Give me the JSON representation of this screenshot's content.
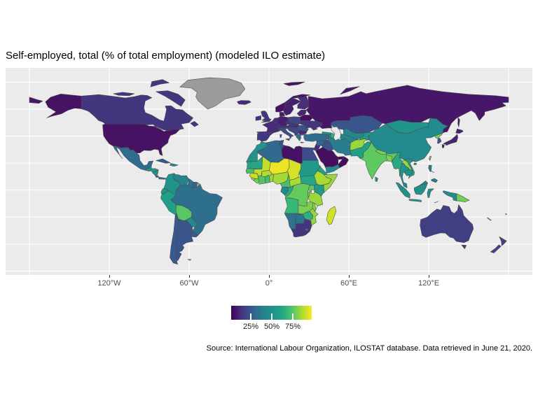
{
  "title": "Self-employed, total (% of total employment) (modeled ILO estimate)",
  "x_axis": {
    "tick_labels": [
      "120°W",
      "60°W",
      "0°",
      "60°E",
      "120°E"
    ]
  },
  "legend": {
    "tick_labels": [
      "25%",
      "50%",
      "75%"
    ],
    "tick_values": [
      25,
      50,
      75
    ]
  },
  "caption": "Source: International Labour Organization, ILOSTAT database. Data retrieved in June 21, 2020.",
  "colors": {
    "panel_bg": "#ebebeb",
    "gridline": "#ffffff",
    "na_color": "#9b9b9b",
    "border": "#4a4a4a",
    "axis_text": "#4d4d4d"
  },
  "chart_data": {
    "type": "choropleth",
    "projection": "equirectangular",
    "title": "Self-employed, total (% of total employment) (modeled ILO estimate)",
    "value_label": "Self-employed (% of total employment)",
    "scale": {
      "palette": "viridis",
      "domain": [
        1.7,
        97.5
      ],
      "stops": [
        "#440154",
        "#482878",
        "#3e4989",
        "#31688e",
        "#26828e",
        "#21918c",
        "#1f9e89",
        "#35b779",
        "#6dcd59",
        "#b8de29",
        "#fde725"
      ]
    },
    "x_axis_ticks_deg": [
      -120,
      -60,
      0,
      60,
      120
    ],
    "gridlines": {
      "lon_step": 60,
      "lat_step": 20
    },
    "countries": [
      {
        "id": "russia",
        "name": "Russia",
        "value": 7
      },
      {
        "id": "norway",
        "name": "Norway",
        "value": 6
      },
      {
        "id": "sweden",
        "name": "Sweden",
        "value": 9
      },
      {
        "id": "finland",
        "name": "Finland",
        "value": 13
      },
      {
        "id": "denmark",
        "name": "Denmark",
        "value": 8
      },
      {
        "id": "iceland",
        "name": "Iceland",
        "value": 12
      },
      {
        "id": "ireland",
        "name": "Ireland",
        "value": 14
      },
      {
        "id": "uk",
        "name": "United Kingdom",
        "value": 15
      },
      {
        "id": "portugal",
        "name": "Portugal",
        "value": 17
      },
      {
        "id": "spain",
        "name": "Spain",
        "value": 16
      },
      {
        "id": "france",
        "name": "France",
        "value": 12
      },
      {
        "id": "benelux",
        "name": "Benelux",
        "value": 13
      },
      {
        "id": "germany",
        "name": "Germany",
        "value": 9
      },
      {
        "id": "alpine",
        "name": "Switzerland/Austria",
        "value": 12
      },
      {
        "id": "italy",
        "name": "Italy",
        "value": 22
      },
      {
        "id": "poland",
        "name": "Poland",
        "value": 20
      },
      {
        "id": "czech-slovakia",
        "name": "Czechia/Slovakia",
        "value": 15
      },
      {
        "id": "hungary",
        "name": "Hungary",
        "value": 11
      },
      {
        "id": "romania",
        "name": "Romania",
        "value": 24
      },
      {
        "id": "balkans",
        "name": "Western Balkans",
        "value": 20
      },
      {
        "id": "bulgaria",
        "name": "Bulgaria",
        "value": 11
      },
      {
        "id": "greece",
        "name": "Greece",
        "value": 33
      },
      {
        "id": "baltics",
        "name": "Baltic states",
        "value": 11
      },
      {
        "id": "belarus",
        "name": "Belarus",
        "value": 5
      },
      {
        "id": "ukraine",
        "name": "Ukraine",
        "value": 15
      },
      {
        "id": "georgia",
        "name": "Georgia",
        "value": 49
      },
      {
        "id": "armenia",
        "name": "Armenia",
        "value": 44
      },
      {
        "id": "azerbaijan",
        "name": "Azerbaijan",
        "value": 68
      },
      {
        "id": "turkey",
        "name": "Turkey",
        "value": 32
      },
      {
        "id": "syria",
        "name": "Syria",
        "value": 30
      },
      {
        "id": "iraq",
        "name": "Iraq",
        "value": 24
      },
      {
        "id": "jordan-israel",
        "name": "Jordan/Israel/Lebanon",
        "value": 12
      },
      {
        "id": "saudi-arabia",
        "name": "Saudi Arabia",
        "value": 5
      },
      {
        "id": "yemen",
        "name": "Yemen",
        "value": 46
      },
      {
        "id": "oman",
        "name": "Oman",
        "value": 5
      },
      {
        "id": "uae",
        "name": "United Arab Emirates",
        "value": 4
      },
      {
        "id": "iran",
        "name": "Iran",
        "value": 38
      },
      {
        "id": "afghanistan",
        "name": "Afghanistan",
        "value": 84
      },
      {
        "id": "pakistan",
        "name": "Pakistan",
        "value": 60
      },
      {
        "id": "kazakhstan",
        "name": "Kazakhstan",
        "value": 25
      },
      {
        "id": "uzbekistan",
        "name": "Uzbekistan",
        "value": 43
      },
      {
        "id": "turkmenistan",
        "name": "Turkmenistan",
        "value": 42
      },
      {
        "id": "kyrgyzstan-tajikistan",
        "name": "Kyrgyzstan/Tajikistan",
        "value": 55
      },
      {
        "id": "china",
        "name": "China",
        "value": 46
      },
      {
        "id": "mongolia",
        "name": "Mongolia",
        "value": 53
      },
      {
        "id": "north-korea",
        "name": "North Korea",
        "value": 80
      },
      {
        "id": "south-korea",
        "name": "South Korea",
        "value": 25
      },
      {
        "id": "japan",
        "name": "Japan",
        "value": 10
      },
      {
        "id": "taiwan",
        "name": "Taiwan",
        "value": null
      },
      {
        "id": "india",
        "name": "India",
        "value": 76
      },
      {
        "id": "nepal",
        "name": "Nepal",
        "value": 80
      },
      {
        "id": "bangladesh",
        "name": "Bangladesh",
        "value": 80
      },
      {
        "id": "sri-lanka",
        "name": "Sri Lanka",
        "value": 45
      },
      {
        "id": "myanmar",
        "name": "Myanmar",
        "value": 63
      },
      {
        "id": "thailand",
        "name": "Thailand",
        "value": 51
      },
      {
        "id": "laos",
        "name": "Laos",
        "value": 84
      },
      {
        "id": "vietnam",
        "name": "Vietnam",
        "value": 57
      },
      {
        "id": "cambodia",
        "name": "Cambodia",
        "value": 51
      },
      {
        "id": "indonesia",
        "name": "Indonesia",
        "value": 49
      },
      {
        "id": "malaysia",
        "name": "Malaysia",
        "value": 40
      },
      {
        "id": "philippines",
        "name": "Philippines",
        "value": 37
      },
      {
        "id": "papua-new-guinea",
        "name": "Papua New Guinea",
        "value": 79
      },
      {
        "id": "morocco",
        "name": "Morocco",
        "value": 50
      },
      {
        "id": "algeria",
        "name": "Algeria",
        "value": 31
      },
      {
        "id": "tunisia",
        "name": "Tunisia",
        "value": 24
      },
      {
        "id": "libya",
        "name": "Libya",
        "value": 6
      },
      {
        "id": "egypt",
        "name": "Egypt",
        "value": 22
      },
      {
        "id": "mauritania",
        "name": "Mauritania",
        "value": 62
      },
      {
        "id": "mali",
        "name": "Mali",
        "value": 89
      },
      {
        "id": "niger",
        "name": "Niger",
        "value": 95
      },
      {
        "id": "chad",
        "name": "Chad",
        "value": 92
      },
      {
        "id": "sudan",
        "name": "Sudan",
        "value": 55
      },
      {
        "id": "south-sudan",
        "name": "South Sudan",
        "value": 62
      },
      {
        "id": "eritrea",
        "name": "Eritrea/Djibouti",
        "value": 60
      },
      {
        "id": "ethiopia",
        "name": "Ethiopia",
        "value": 86
      },
      {
        "id": "somalia",
        "name": "Somalia",
        "value": 84
      },
      {
        "id": "senegal",
        "name": "Senegal",
        "value": 72
      },
      {
        "id": "guinea",
        "name": "Guinea",
        "value": 90
      },
      {
        "id": "sierra-leone",
        "name": "Sierra Leone",
        "value": 87
      },
      {
        "id": "liberia",
        "name": "Liberia",
        "value": 79
      },
      {
        "id": "cote-divoire",
        "name": "Côte d'Ivoire",
        "value": 74
      },
      {
        "id": "ghana",
        "name": "Ghana",
        "value": 71
      },
      {
        "id": "burkina-faso",
        "name": "Burkina Faso",
        "value": 87
      },
      {
        "id": "benin-togo",
        "name": "Benin/Togo",
        "value": 85
      },
      {
        "id": "nigeria",
        "name": "Nigeria",
        "value": 85
      },
      {
        "id": "cameroon",
        "name": "Cameroon",
        "value": 72
      },
      {
        "id": "central-african-republic",
        "name": "Central African Republic",
        "value": 86
      },
      {
        "id": "drc",
        "name": "DR Congo",
        "value": 77
      },
      {
        "id": "congo",
        "name": "Congo",
        "value": 63
      },
      {
        "id": "gabon",
        "name": "Gabon",
        "value": 45
      },
      {
        "id": "uganda",
        "name": "Uganda",
        "value": 76
      },
      {
        "id": "kenya",
        "name": "Kenya",
        "value": 57
      },
      {
        "id": "tanzania",
        "name": "Tanzania",
        "value": 84
      },
      {
        "id": "rwanda-burundi",
        "name": "Rwanda/Burundi",
        "value": 78
      },
      {
        "id": "angola",
        "name": "Angola",
        "value": 69
      },
      {
        "id": "zambia",
        "name": "Zambia",
        "value": 80
      },
      {
        "id": "malawi",
        "name": "Malawi",
        "value": 81
      },
      {
        "id": "mozambique",
        "name": "Mozambique",
        "value": 83
      },
      {
        "id": "zimbabwe",
        "name": "Zimbabwe",
        "value": 66
      },
      {
        "id": "madagascar",
        "name": "Madagascar",
        "value": 91
      },
      {
        "id": "namibia",
        "name": "Namibia",
        "value": 34
      },
      {
        "id": "botswana",
        "name": "Botswana",
        "value": 35
      },
      {
        "id": "south-africa",
        "name": "South Africa",
        "value": 15
      },
      {
        "id": "lesotho",
        "name": "Lesotho",
        "value": 47
      },
      {
        "id": "greenland",
        "name": "Greenland",
        "value": null
      },
      {
        "id": "canada",
        "name": "Canada",
        "value": 15
      },
      {
        "id": "usa",
        "name": "United States",
        "value": 6
      },
      {
        "id": "mexico",
        "name": "Mexico",
        "value": 32
      },
      {
        "id": "guatemala",
        "name": "Guatemala",
        "value": 50
      },
      {
        "id": "honduras",
        "name": "Honduras/El Salvador",
        "value": 56
      },
      {
        "id": "nicaragua",
        "name": "Nicaragua",
        "value": 50
      },
      {
        "id": "costa-rica",
        "name": "Costa Rica",
        "value": 27
      },
      {
        "id": "panama",
        "name": "Panama",
        "value": 33
      },
      {
        "id": "cuba",
        "name": "Cuba",
        "value": 26
      },
      {
        "id": "hispaniola",
        "name": "Haiti/Dominican Rep.",
        "value": 44
      },
      {
        "id": "colombia",
        "name": "Colombia",
        "value": 52
      },
      {
        "id": "venezuela",
        "name": "Venezuela",
        "value": 41
      },
      {
        "id": "guyana",
        "name": "Guyana",
        "value": 36
      },
      {
        "id": "suriname",
        "name": "Suriname",
        "value": 30
      },
      {
        "id": "french-guiana",
        "name": "French Guiana",
        "value": null
      },
      {
        "id": "ecuador",
        "name": "Ecuador",
        "value": 55
      },
      {
        "id": "peru",
        "name": "Peru",
        "value": 60
      },
      {
        "id": "bolivia",
        "name": "Bolivia",
        "value": 75
      },
      {
        "id": "brazil",
        "name": "Brazil",
        "value": 33
      },
      {
        "id": "paraguay",
        "name": "Paraguay",
        "value": 45
      },
      {
        "id": "chile",
        "name": "Chile",
        "value": 26
      },
      {
        "id": "argentina",
        "name": "Argentina",
        "value": 24
      },
      {
        "id": "uruguay",
        "name": "Uruguay",
        "value": 26
      },
      {
        "id": "falkland-islands",
        "name": "Falkland Islands",
        "value": null
      },
      {
        "id": "australia",
        "name": "Australia",
        "value": 18
      },
      {
        "id": "new-zealand",
        "name": "New Zealand",
        "value": 19
      },
      {
        "id": "fiji",
        "name": "Fiji",
        "value": null
      },
      {
        "id": "new-caledonia",
        "name": "New Caledonia",
        "value": null
      }
    ]
  }
}
